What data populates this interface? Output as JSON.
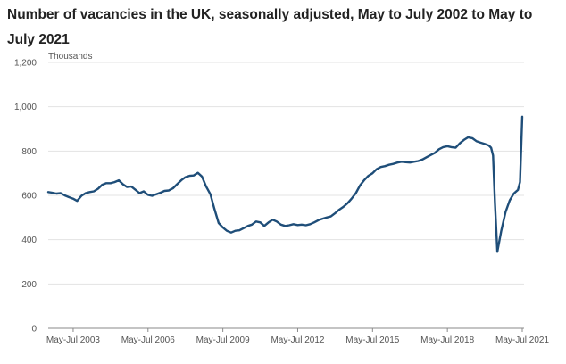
{
  "chart_data": {
    "type": "line",
    "title": "Number of vacancies in the UK, seasonally adjusted, May to July 2002 to May to July 2021",
    "ylabel_unit": "Thousands",
    "ylim": [
      0,
      1200
    ],
    "yticks": [
      "0",
      "200",
      "400",
      "600",
      "800",
      "1,000",
      "1,200"
    ],
    "ytick_values": [
      0,
      200,
      400,
      600,
      800,
      1000,
      1200
    ],
    "xlim": [
      2002.42,
      2021.42
    ],
    "x_tick_labels": [
      "May-Jul 2003",
      "May-Jul 2006",
      "May-Jul 2009",
      "May-Jul 2012",
      "May-Jul 2015",
      "May-Jul 2018",
      "May-Jul 2021"
    ],
    "x_tick_values": [
      2003.42,
      2006.42,
      2009.42,
      2012.42,
      2015.42,
      2018.42,
      2021.42
    ],
    "grid": true,
    "line_color": "#1f4e79",
    "series": [
      {
        "values": [
          [
            2002.42,
            615
          ],
          [
            2002.58,
            612
          ],
          [
            2002.75,
            608
          ],
          [
            2002.92,
            610
          ],
          [
            2003.08,
            600
          ],
          [
            2003.25,
            592
          ],
          [
            2003.42,
            585
          ],
          [
            2003.58,
            575
          ],
          [
            2003.75,
            598
          ],
          [
            2003.92,
            610
          ],
          [
            2004.08,
            615
          ],
          [
            2004.25,
            618
          ],
          [
            2004.42,
            630
          ],
          [
            2004.58,
            648
          ],
          [
            2004.75,
            655
          ],
          [
            2004.92,
            655
          ],
          [
            2005.08,
            660
          ],
          [
            2005.25,
            668
          ],
          [
            2005.42,
            650
          ],
          [
            2005.58,
            638
          ],
          [
            2005.75,
            640
          ],
          [
            2005.92,
            625
          ],
          [
            2006.08,
            610
          ],
          [
            2006.25,
            618
          ],
          [
            2006.42,
            602
          ],
          [
            2006.58,
            598
          ],
          [
            2006.75,
            605
          ],
          [
            2006.92,
            612
          ],
          [
            2007.08,
            620
          ],
          [
            2007.25,
            622
          ],
          [
            2007.42,
            632
          ],
          [
            2007.58,
            650
          ],
          [
            2007.75,
            668
          ],
          [
            2007.92,
            682
          ],
          [
            2008.08,
            688
          ],
          [
            2008.25,
            690
          ],
          [
            2008.42,
            702
          ],
          [
            2008.58,
            685
          ],
          [
            2008.75,
            640
          ],
          [
            2008.92,
            605
          ],
          [
            2009.08,
            540
          ],
          [
            2009.25,
            475
          ],
          [
            2009.42,
            455
          ],
          [
            2009.58,
            440
          ],
          [
            2009.75,
            432
          ],
          [
            2009.92,
            440
          ],
          [
            2010.08,
            442
          ],
          [
            2010.25,
            452
          ],
          [
            2010.42,
            462
          ],
          [
            2010.58,
            468
          ],
          [
            2010.75,
            482
          ],
          [
            2010.92,
            478
          ],
          [
            2011.08,
            462
          ],
          [
            2011.25,
            478
          ],
          [
            2011.42,
            490
          ],
          [
            2011.58,
            482
          ],
          [
            2011.75,
            468
          ],
          [
            2011.92,
            462
          ],
          [
            2012.08,
            465
          ],
          [
            2012.25,
            470
          ],
          [
            2012.42,
            466
          ],
          [
            2012.58,
            468
          ],
          [
            2012.75,
            465
          ],
          [
            2012.92,
            470
          ],
          [
            2013.08,
            478
          ],
          [
            2013.25,
            488
          ],
          [
            2013.42,
            495
          ],
          [
            2013.58,
            500
          ],
          [
            2013.75,
            505
          ],
          [
            2013.92,
            520
          ],
          [
            2014.08,
            535
          ],
          [
            2014.25,
            548
          ],
          [
            2014.42,
            565
          ],
          [
            2014.58,
            585
          ],
          [
            2014.75,
            610
          ],
          [
            2014.92,
            645
          ],
          [
            2015.08,
            668
          ],
          [
            2015.25,
            688
          ],
          [
            2015.42,
            700
          ],
          [
            2015.58,
            718
          ],
          [
            2015.75,
            728
          ],
          [
            2015.92,
            732
          ],
          [
            2016.08,
            738
          ],
          [
            2016.25,
            742
          ],
          [
            2016.42,
            748
          ],
          [
            2016.58,
            752
          ],
          [
            2016.75,
            750
          ],
          [
            2016.92,
            748
          ],
          [
            2017.08,
            752
          ],
          [
            2017.25,
            755
          ],
          [
            2017.42,
            762
          ],
          [
            2017.58,
            772
          ],
          [
            2017.75,
            782
          ],
          [
            2017.92,
            792
          ],
          [
            2018.08,
            808
          ],
          [
            2018.25,
            818
          ],
          [
            2018.42,
            822
          ],
          [
            2018.58,
            818
          ],
          [
            2018.75,
            815
          ],
          [
            2018.92,
            835
          ],
          [
            2019.08,
            850
          ],
          [
            2019.25,
            862
          ],
          [
            2019.42,
            858
          ],
          [
            2019.58,
            845
          ],
          [
            2019.75,
            838
          ],
          [
            2019.92,
            832
          ],
          [
            2020.08,
            825
          ],
          [
            2020.17,
            815
          ],
          [
            2020.25,
            780
          ],
          [
            2020.33,
            560
          ],
          [
            2020.42,
            345
          ],
          [
            2020.58,
            440
          ],
          [
            2020.75,
            525
          ],
          [
            2020.92,
            578
          ],
          [
            2021.08,
            608
          ],
          [
            2021.25,
            625
          ],
          [
            2021.33,
            660
          ],
          [
            2021.42,
            955
          ]
        ]
      }
    ]
  }
}
